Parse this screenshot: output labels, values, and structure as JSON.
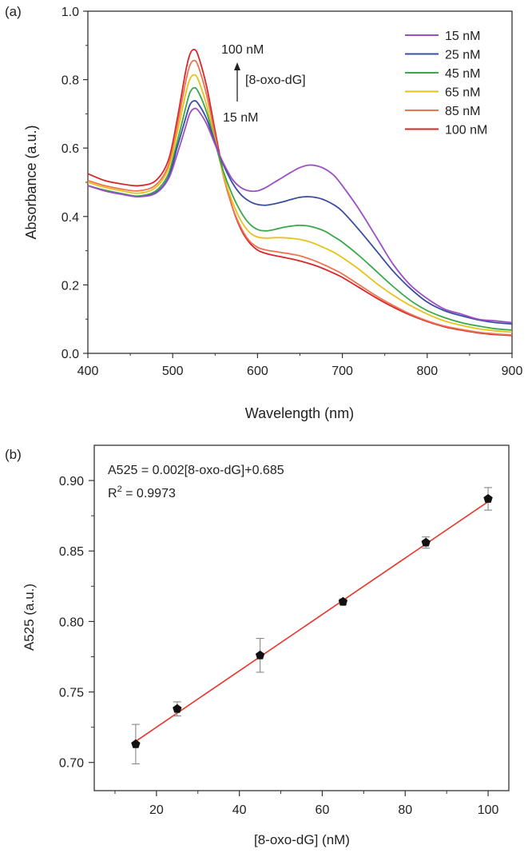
{
  "chart_data": [
    {
      "type": "line",
      "panel_label": "(a)",
      "xlabel": "Wavelength (nm)",
      "ylabel": "Absorbance (a.u.)",
      "xlim": [
        400,
        900
      ],
      "ylim": [
        0.0,
        1.0
      ],
      "x_ticks": [
        400,
        500,
        600,
        700,
        800,
        900
      ],
      "y_ticks": [
        0.0,
        0.2,
        0.4,
        0.6,
        0.8,
        1.0
      ],
      "y_tick_labels": [
        "0.0",
        "0.2",
        "0.4",
        "0.6",
        "0.8",
        "1.0"
      ],
      "legend_position": "top-right",
      "annotations": {
        "top": "100 nM",
        "middle": "[8-oxo-dG]",
        "bottom": "15 nM"
      },
      "series": [
        {
          "name": "15 nM",
          "color": "#9b4fc4",
          "x": [
            400,
            420,
            440,
            460,
            480,
            495,
            505,
            515,
            520,
            525,
            530,
            540,
            550,
            560,
            570,
            580,
            590,
            600,
            610,
            620,
            630,
            640,
            650,
            660,
            670,
            680,
            690,
            700,
            720,
            740,
            760,
            780,
            800,
            820,
            840,
            860,
            880,
            900
          ],
          "y": [
            0.49,
            0.475,
            0.465,
            0.458,
            0.468,
            0.51,
            0.58,
            0.66,
            0.7,
            0.715,
            0.71,
            0.67,
            0.61,
            0.555,
            0.51,
            0.485,
            0.475,
            0.475,
            0.485,
            0.5,
            0.515,
            0.53,
            0.543,
            0.55,
            0.548,
            0.538,
            0.52,
            0.49,
            0.42,
            0.34,
            0.26,
            0.2,
            0.16,
            0.13,
            0.115,
            0.1,
            0.095,
            0.09
          ]
        },
        {
          "name": "25 nM",
          "color": "#3a4ea0",
          "x": [
            400,
            420,
            440,
            460,
            480,
            495,
            505,
            515,
            520,
            525,
            530,
            540,
            550,
            560,
            570,
            580,
            590,
            600,
            610,
            620,
            630,
            640,
            650,
            660,
            670,
            680,
            690,
            700,
            720,
            740,
            760,
            780,
            800,
            820,
            840,
            860,
            880,
            900
          ],
          "y": [
            0.49,
            0.475,
            0.465,
            0.458,
            0.47,
            0.515,
            0.6,
            0.685,
            0.725,
            0.738,
            0.73,
            0.685,
            0.615,
            0.55,
            0.5,
            0.465,
            0.445,
            0.435,
            0.433,
            0.437,
            0.443,
            0.45,
            0.456,
            0.458,
            0.455,
            0.447,
            0.434,
            0.415,
            0.36,
            0.3,
            0.24,
            0.19,
            0.15,
            0.125,
            0.11,
            0.098,
            0.09,
            0.086
          ]
        },
        {
          "name": "45 nM",
          "color": "#3aa84a",
          "x": [
            400,
            420,
            440,
            460,
            480,
            495,
            505,
            515,
            520,
            525,
            530,
            540,
            550,
            560,
            570,
            580,
            590,
            600,
            610,
            620,
            630,
            640,
            650,
            660,
            670,
            680,
            690,
            700,
            720,
            740,
            760,
            780,
            800,
            820,
            840,
            860,
            880,
            900
          ],
          "y": [
            0.49,
            0.477,
            0.467,
            0.46,
            0.475,
            0.525,
            0.615,
            0.715,
            0.76,
            0.776,
            0.765,
            0.705,
            0.615,
            0.53,
            0.465,
            0.415,
            0.38,
            0.362,
            0.358,
            0.362,
            0.368,
            0.372,
            0.374,
            0.372,
            0.366,
            0.356,
            0.341,
            0.325,
            0.285,
            0.24,
            0.195,
            0.155,
            0.125,
            0.105,
            0.09,
            0.08,
            0.072,
            0.068
          ]
        },
        {
          "name": "65 nM",
          "color": "#e6c21a",
          "x": [
            400,
            420,
            440,
            460,
            480,
            495,
            505,
            515,
            520,
            525,
            530,
            540,
            550,
            560,
            570,
            580,
            590,
            600,
            610,
            620,
            630,
            640,
            650,
            660,
            670,
            680,
            690,
            700,
            720,
            740,
            760,
            780,
            800,
            820,
            840,
            860,
            880,
            900
          ],
          "y": [
            0.5,
            0.485,
            0.475,
            0.468,
            0.485,
            0.54,
            0.64,
            0.755,
            0.8,
            0.814,
            0.8,
            0.725,
            0.62,
            0.52,
            0.445,
            0.39,
            0.355,
            0.34,
            0.337,
            0.338,
            0.338,
            0.336,
            0.333,
            0.327,
            0.318,
            0.307,
            0.295,
            0.28,
            0.245,
            0.205,
            0.17,
            0.14,
            0.115,
            0.095,
            0.082,
            0.072,
            0.066,
            0.062
          ]
        },
        {
          "name": "85 nM",
          "color": "#ea7550",
          "x": [
            400,
            420,
            440,
            460,
            480,
            495,
            505,
            515,
            520,
            525,
            530,
            540,
            550,
            560,
            570,
            580,
            590,
            600,
            610,
            620,
            630,
            640,
            650,
            660,
            670,
            680,
            690,
            700,
            720,
            740,
            760,
            780,
            800,
            820,
            840,
            860,
            880,
            900
          ],
          "y": [
            0.505,
            0.49,
            0.48,
            0.475,
            0.492,
            0.55,
            0.66,
            0.79,
            0.84,
            0.856,
            0.84,
            0.755,
            0.635,
            0.515,
            0.43,
            0.37,
            0.33,
            0.31,
            0.302,
            0.298,
            0.294,
            0.29,
            0.285,
            0.277,
            0.268,
            0.257,
            0.245,
            0.232,
            0.2,
            0.168,
            0.14,
            0.115,
            0.095,
            0.08,
            0.07,
            0.062,
            0.057,
            0.054
          ]
        },
        {
          "name": "100 nM",
          "color": "#d9262b",
          "x": [
            400,
            420,
            440,
            460,
            480,
            495,
            505,
            515,
            520,
            525,
            530,
            540,
            550,
            560,
            570,
            580,
            590,
            600,
            610,
            620,
            630,
            640,
            650,
            660,
            670,
            680,
            690,
            700,
            720,
            740,
            760,
            780,
            800,
            820,
            840,
            860,
            880,
            900
          ],
          "y": [
            0.525,
            0.505,
            0.495,
            0.49,
            0.505,
            0.565,
            0.68,
            0.82,
            0.872,
            0.888,
            0.87,
            0.78,
            0.65,
            0.525,
            0.43,
            0.365,
            0.325,
            0.302,
            0.292,
            0.286,
            0.281,
            0.276,
            0.27,
            0.263,
            0.255,
            0.245,
            0.234,
            0.222,
            0.192,
            0.162,
            0.135,
            0.112,
            0.093,
            0.078,
            0.068,
            0.06,
            0.055,
            0.052
          ]
        }
      ]
    },
    {
      "type": "scatter",
      "panel_label": "(b)",
      "xlabel": "[8-oxo-dG] (nM)",
      "ylabel": "A525 (a.u.)",
      "xlim": [
        5,
        105
      ],
      "ylim": [
        0.68,
        0.925
      ],
      "x_ticks": [
        20,
        40,
        60,
        80,
        100
      ],
      "y_ticks": [
        0.7,
        0.75,
        0.8,
        0.85,
        0.9
      ],
      "y_tick_labels": [
        "0.70",
        "0.75",
        "0.80",
        "0.85",
        "0.90"
      ],
      "equation_prefix": "A525 = 0.002[8-oxo-dG]+0.685",
      "r2_prefix": "R",
      "r2_sup": "2",
      "r2_value": " = 0.9973",
      "fit": {
        "slope": 0.002,
        "intercept": 0.685,
        "x_range": [
          15,
          100
        ],
        "color": "#e8342a"
      },
      "points": [
        {
          "x": 15,
          "y": 0.713,
          "err": 0.014
        },
        {
          "x": 25,
          "y": 0.738,
          "err": 0.005
        },
        {
          "x": 45,
          "y": 0.776,
          "err": 0.012
        },
        {
          "x": 65,
          "y": 0.814,
          "err": 0.002
        },
        {
          "x": 85,
          "y": 0.856,
          "err": 0.004
        },
        {
          "x": 100,
          "y": 0.887,
          "err": 0.008
        }
      ]
    }
  ]
}
